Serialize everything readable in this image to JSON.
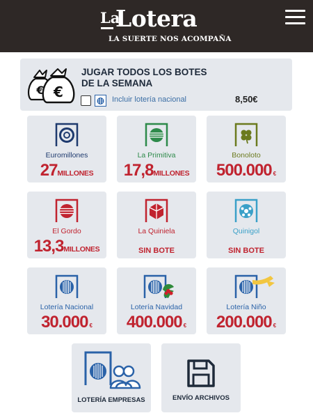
{
  "header": {
    "logo_la": "La",
    "logo_lotera": "Lotera",
    "tagline": "LA SUERTE NOS ACOMPAÑA"
  },
  "combo": {
    "title": "JUGAR TODOS LOS BOTES DE LA SEMANA",
    "include_label": "Incluir lotería nacional",
    "price": "8,50€"
  },
  "games": [
    {
      "name": "Euromillones",
      "name_color": "#1e3a6e",
      "prize_big": "27",
      "prize_unit": "MILLONES",
      "icon": "euromillones-icon",
      "color": "#1e3a6e"
    },
    {
      "name": "La Primitiva",
      "name_color": "#2d8a4a",
      "prize_big": "17,8",
      "prize_unit": "MILLONES",
      "icon": "primitiva-icon",
      "color": "#2d8a4a"
    },
    {
      "name": "Bonoloto",
      "name_color": "#6b7a1e",
      "prize_big": "500.000",
      "prize_unit": "€",
      "icon": "bonoloto-icon",
      "color": "#6b7a1e"
    },
    {
      "name": "El Gordo",
      "name_color": "#c0232f",
      "prize_big": "13,3",
      "prize_unit": "MILLONES",
      "icon": "el-gordo-icon",
      "color": "#c0232f"
    },
    {
      "name": "La Quiniela",
      "name_color": "#c0232f",
      "prize_text": "SIN BOTE",
      "icon": "quiniela-icon",
      "color": "#c0232f"
    },
    {
      "name": "Quinigol",
      "name_color": "#3aa0c8",
      "prize_text": "SIN BOTE",
      "icon": "quinigol-icon",
      "color": "#3aa0c8"
    },
    {
      "name": "Lotería Nacional",
      "name_color": "#2a62a8",
      "prize_big": "30.000",
      "prize_unit": "€",
      "icon": "loteria-nacional-icon",
      "color": "#2a62a8"
    },
    {
      "name": "Lotería Navidad",
      "name_color": "#2a62a8",
      "prize_big": "400.000",
      "prize_unit": "€",
      "icon": "loteria-navidad-icon",
      "color": "#2a62a8"
    },
    {
      "name": "Lotería Niño",
      "name_color": "#2a62a8",
      "prize_big": "200.000",
      "prize_unit": "€",
      "icon": "loteria-nino-icon",
      "color": "#2a62a8"
    }
  ],
  "extras": [
    {
      "name": "LOTERÍA EMPRESAS",
      "icon": "loteria-empresas-icon"
    },
    {
      "name": "ENVÍO ARCHIVOS",
      "icon": "save-files-icon"
    }
  ]
}
